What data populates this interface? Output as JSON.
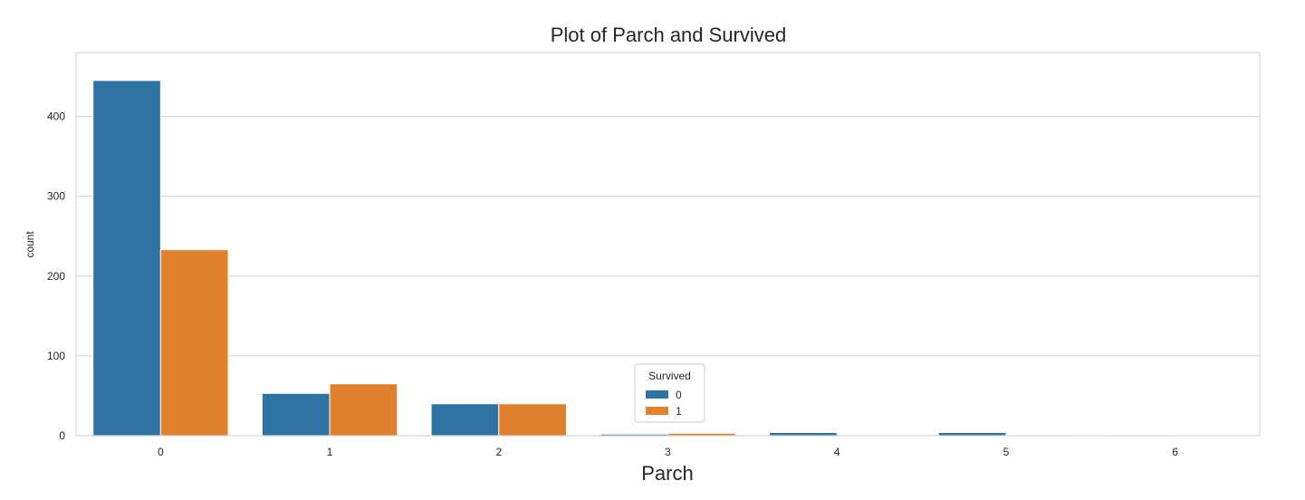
{
  "chart_data": {
    "type": "bar",
    "title": "Plot of Parch and Survived",
    "xlabel": "Parch",
    "ylabel": "count",
    "categories": [
      "0",
      "1",
      "2",
      "3",
      "4",
      "5",
      "6"
    ],
    "series": [
      {
        "name": "0",
        "color": "#2e73a4",
        "values": [
          445,
          53,
          40,
          2,
          4,
          4,
          1
        ]
      },
      {
        "name": "1",
        "color": "#e2812d",
        "values": [
          233,
          65,
          40,
          3,
          0,
          1,
          0
        ]
      }
    ],
    "ylim": [
      0,
      480
    ],
    "yticks": [
      0,
      100,
      200,
      300,
      400
    ],
    "grid": true,
    "legend": {
      "title": "Survived",
      "placement": "lower-center"
    }
  }
}
